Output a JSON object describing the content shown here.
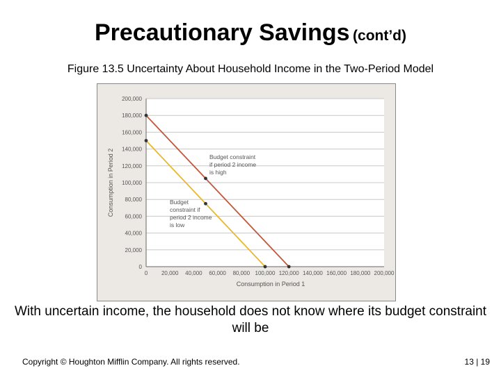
{
  "slide": {
    "title_main": "Precautionary Savings",
    "title_sub": "(cont’d)",
    "figure_caption": "Figure 13.5 Uncertainty About Household Income in the Two-Period Model",
    "body_text": "With uncertain income, the household does not know where its budget constraint will be",
    "copyright": "Copyright © Houghton Mifflin Company.  All rights reserved.",
    "page_number": "13 | 19"
  },
  "chart_data": {
    "type": "line",
    "title": "",
    "xlabel": "Consumption in Period 1",
    "ylabel": "Consumption in Period 2",
    "xlim": [
      0,
      200000
    ],
    "ylim": [
      0,
      200000
    ],
    "x_ticks": [
      0,
      20000,
      40000,
      60000,
      80000,
      100000,
      120000,
      140000,
      160000,
      180000,
      200000
    ],
    "y_ticks": [
      0,
      20000,
      40000,
      60000,
      80000,
      100000,
      120000,
      140000,
      160000,
      180000,
      200000
    ],
    "x_tick_labels": [
      "0",
      "20,000",
      "40,000",
      "60,000",
      "80,000",
      "100,000",
      "120,000",
      "140,000",
      "160,000",
      "180,000",
      "200,000"
    ],
    "y_tick_labels": [
      "0",
      "20,000",
      "40,000",
      "60,000",
      "80,000",
      "100,000",
      "120,000",
      "140,000",
      "160,000",
      "180,000",
      "200,000"
    ],
    "grid": "horizontal",
    "series": [
      {
        "color": "#c0583a",
        "points": [
          [
            0,
            180000
          ],
          [
            50000,
            105000
          ],
          [
            120000,
            0
          ]
        ],
        "annotation": [
          "Budget constraint",
          "if period 2 income",
          "is high"
        ]
      },
      {
        "color": "#e8b830",
        "points": [
          [
            0,
            150000
          ],
          [
            50000,
            75000
          ],
          [
            100000,
            0
          ]
        ],
        "annotation": [
          "Budget",
          "constraint if",
          "period 2 income",
          "is low"
        ]
      }
    ]
  }
}
